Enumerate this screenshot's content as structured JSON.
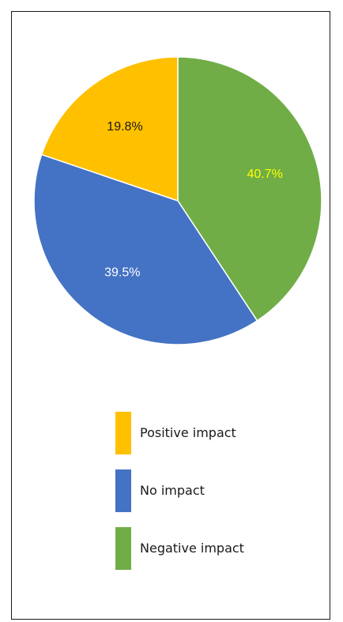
{
  "chart_data": {
    "type": "pie",
    "slices": [
      {
        "label": "Negative impact",
        "value": 40.7,
        "value_label": "40.7%",
        "color": "#70ad47",
        "label_color": "#ffff00"
      },
      {
        "label": "No impact",
        "value": 39.5,
        "value_label": "39.5%",
        "color": "#4472c4",
        "label_color": "#ffffff"
      },
      {
        "label": "Positive impact",
        "value": 19.8,
        "value_label": "19.8%",
        "color": "#ffc000",
        "label_color": "#1a1a1a"
      }
    ],
    "start_angle": "12 o'clock",
    "direction": "clockwise",
    "legend": {
      "position": "bottom",
      "items": [
        {
          "label": "Positive impact",
          "color": "#ffc000"
        },
        {
          "label": "No impact",
          "color": "#4472c4"
        },
        {
          "label": "Negative impact",
          "color": "#70ad47"
        }
      ]
    }
  }
}
